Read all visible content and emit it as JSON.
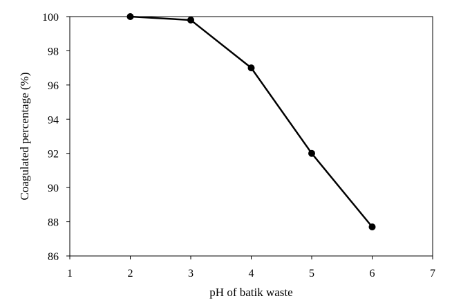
{
  "chart_data": {
    "type": "line",
    "title": "",
    "xlabel": "pH of batik waste",
    "ylabel": "Coagulated percentage (%)",
    "xlim": [
      1,
      7
    ],
    "ylim": [
      86,
      100
    ],
    "x_ticks": [
      "1",
      "2",
      "3",
      "4",
      "5",
      "6",
      "7"
    ],
    "y_ticks": [
      "86",
      "88",
      "90",
      "92",
      "94",
      "96",
      "98",
      "100"
    ],
    "grid": false,
    "legend": "none",
    "series": [
      {
        "x": [
          2,
          3,
          4,
          5,
          6
        ],
        "y": [
          100,
          99.8,
          97,
          92,
          87.7
        ],
        "color": "#000000",
        "marker": "circle"
      }
    ]
  }
}
